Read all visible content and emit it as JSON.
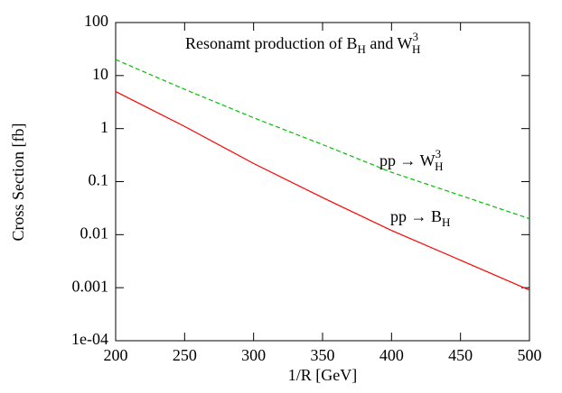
{
  "chart_data": {
    "type": "line",
    "title": [
      {
        "text": "Resonamt production of B"
      },
      {
        "text": "H",
        "shift": "sub"
      },
      {
        "text": " and W"
      },
      {
        "text": "3",
        "shift": "sup"
      },
      {
        "text": "H",
        "shift": "sub"
      }
    ],
    "x_label": "1/R [GeV]",
    "y_label": "Cross Section [fb]",
    "x": [
      200,
      250,
      300,
      350,
      400,
      450,
      500
    ],
    "series": [
      {
        "label": [
          {
            "text": "pp → W"
          },
          {
            "text": "3",
            "shift": "sup"
          },
          {
            "text": "H",
            "shift": "sub"
          }
        ],
        "color": "#00c000",
        "dashed": true,
        "values": [
          20,
          5.5,
          1.6,
          0.5,
          0.15,
          0.055,
          0.02
        ]
      },
      {
        "label": [
          {
            "text": "pp → B"
          },
          {
            "text": "H",
            "shift": "sub"
          }
        ],
        "color": "#ff0000",
        "dashed": false,
        "values": [
          5,
          1.1,
          0.22,
          0.05,
          0.012,
          0.0033,
          0.0009
        ]
      }
    ],
    "xlim": [
      200,
      500
    ],
    "xticks": [
      200,
      250,
      300,
      350,
      400,
      450,
      500
    ],
    "ylim": [
      0.0001,
      100
    ],
    "yticks": [
      {
        "value": 0.0001,
        "label": "1e-04"
      },
      0.001,
      0.01,
      0.1,
      1,
      10,
      100
    ],
    "ylog": true,
    "grid": false
  }
}
